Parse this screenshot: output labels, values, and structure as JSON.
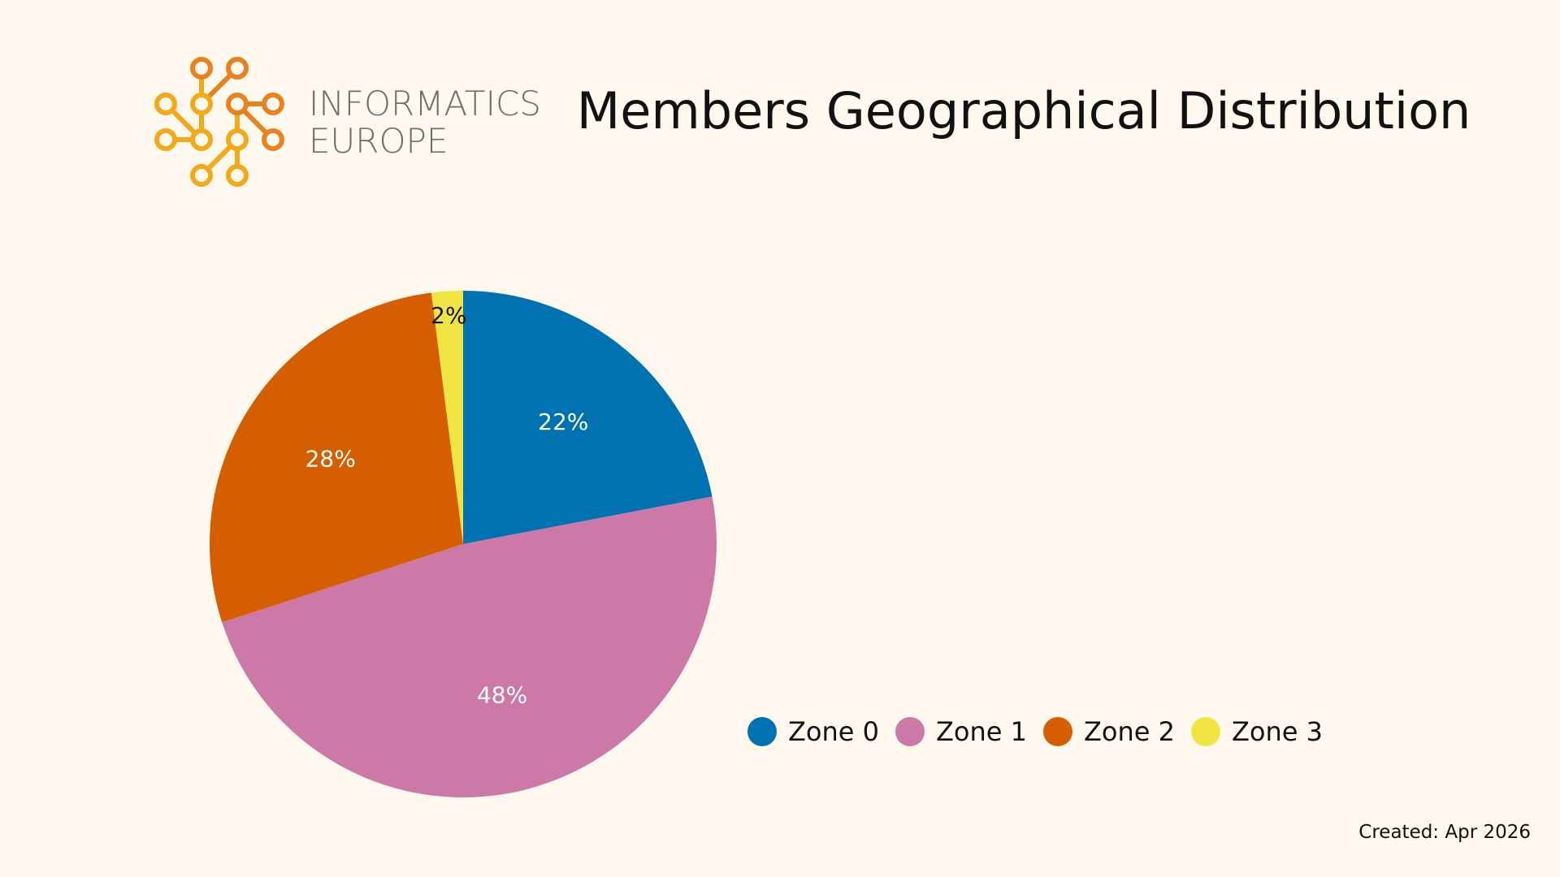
{
  "logo": {
    "line1": "INFORMATICS",
    "line2": "EUROPE",
    "colors": {
      "orange": "#e8821e",
      "amber": "#f3a91a",
      "text": "#6e6e6e"
    }
  },
  "title": "Members Geographical Distribution",
  "chart_data": {
    "type": "pie",
    "title": "Members Geographical Distribution",
    "slices": [
      {
        "name": "Zone 0",
        "value": 22,
        "label": "22%",
        "color": "#0072b2",
        "label_color": "#ffffff"
      },
      {
        "name": "Zone 1",
        "value": 48,
        "label": "48%",
        "color": "#cc79a7",
        "label_color": "#ffffff"
      },
      {
        "name": "Zone 2",
        "value": 28,
        "label": "28%",
        "color": "#d55e00",
        "label_color": "#ffffff"
      },
      {
        "name": "Zone 3",
        "value": 2,
        "label": "2%",
        "color": "#f0e442",
        "label_color": "#111111"
      }
    ],
    "legend_placement": "bottom-right"
  },
  "footer": {
    "created": "Created: Apr 2026"
  }
}
